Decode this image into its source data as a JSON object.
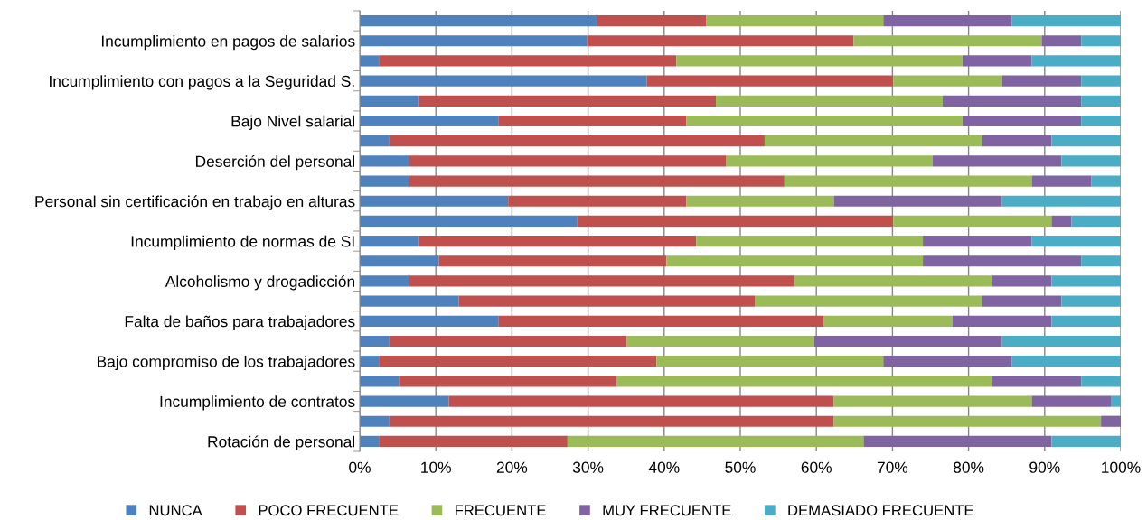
{
  "chart_data": {
    "type": "bar",
    "orientation": "horizontal",
    "stacked": true,
    "categories": [
      null,
      "Incumplimiento en pagos de salarios",
      null,
      "Incumplimiento con pagos a la Seguridad S.",
      null,
      "Bajo Nivel salarial",
      null,
      "Deserción del personal",
      null,
      "Personal sin certificación en trabajo en alturas",
      null,
      "Incumplimiento de normas de SI",
      null,
      "Alcoholismo y drogadicción",
      null,
      "Falta de baños para trabajadores",
      null,
      "Bajo compromiso de los trabajadores",
      null,
      "Incumplimiento de contratos",
      null,
      "Rotación de personal"
    ],
    "series": [
      {
        "name": "NUNCA",
        "color": "#4f81bd",
        "values": [
          31.2,
          29.9,
          2.6,
          37.7,
          7.8,
          18.2,
          3.9,
          6.5,
          6.5,
          19.5,
          28.6,
          7.8,
          10.4,
          6.5,
          13.0,
          18.2,
          3.9,
          2.6,
          5.2,
          11.7,
          3.9,
          2.6
        ]
      },
      {
        "name": "POCO FRECUENTE",
        "color": "#c0504d",
        "values": [
          14.3,
          35.0,
          39.0,
          32.4,
          39.0,
          24.7,
          49.3,
          41.6,
          49.3,
          23.4,
          41.5,
          36.4,
          29.9,
          50.6,
          38.9,
          42.8,
          31.2,
          36.4,
          28.6,
          50.6,
          58.4,
          24.7
        ]
      },
      {
        "name": "FRECUENTE",
        "color": "#9bbb59",
        "values": [
          23.3,
          24.7,
          37.6,
          14.3,
          29.8,
          36.3,
          28.6,
          27.2,
          32.5,
          19.4,
          20.8,
          29.8,
          33.7,
          26.0,
          29.9,
          16.9,
          24.6,
          29.8,
          49.3,
          26.0,
          35.1,
          38.9
        ]
      },
      {
        "name": "MUY FRECUENTE",
        "color": "#8064a2",
        "values": [
          16.9,
          5.2,
          9.1,
          10.4,
          18.2,
          15.6,
          9.1,
          16.9,
          7.8,
          22.1,
          2.6,
          14.3,
          20.8,
          7.8,
          10.4,
          13.0,
          24.7,
          16.9,
          11.7,
          10.4,
          2.6,
          24.7
        ]
      },
      {
        "name": "DEMASIADO FRECUENTE",
        "color": "#4bacc6",
        "values": [
          14.3,
          5.2,
          11.7,
          5.2,
          5.2,
          5.2,
          9.1,
          7.8,
          3.9,
          15.6,
          6.5,
          11.7,
          5.2,
          9.1,
          7.8,
          9.1,
          15.6,
          14.3,
          5.2,
          1.3,
          0,
          9.1
        ]
      }
    ],
    "xlim": [
      0,
      100
    ],
    "xticks": [
      {
        "value": 0,
        "label": "0%"
      },
      {
        "value": 10,
        "label": "10%"
      },
      {
        "value": 20,
        "label": "20%"
      },
      {
        "value": 30,
        "label": "30%"
      },
      {
        "value": 40,
        "label": "40%"
      },
      {
        "value": 50,
        "label": "50%"
      },
      {
        "value": 60,
        "label": "60%"
      },
      {
        "value": 70,
        "label": "70%"
      },
      {
        "value": 80,
        "label": "80%"
      },
      {
        "value": 90,
        "label": "90%"
      },
      {
        "value": 100,
        "label": "100%"
      }
    ],
    "grid": "x",
    "legend": "bottom"
  }
}
